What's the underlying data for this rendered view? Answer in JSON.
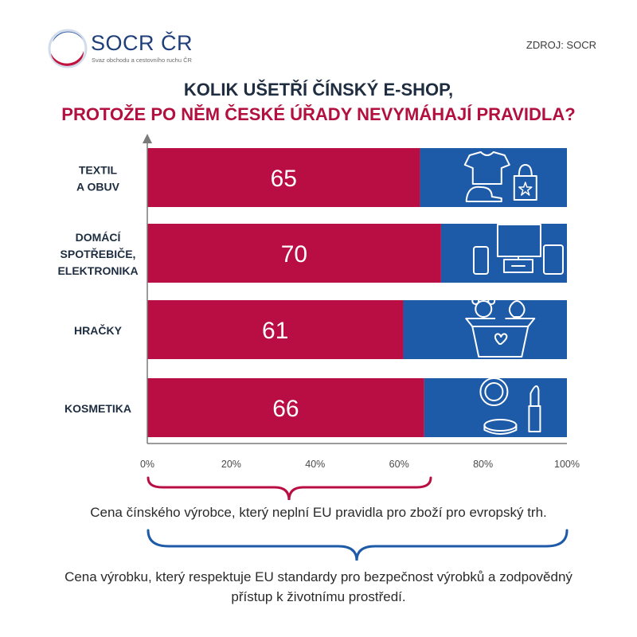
{
  "brand": {
    "name": "SOCR ČR",
    "tagline": "Svaz obchodu a cestovního ruchu ČR"
  },
  "source": "ZDROJ: SOCR",
  "title_line1": "KOLIK UŠETŘÍ ČÍNSKÝ E-SHOP,",
  "title_line2": "PROTOŽE PO NĚM ČESKÉ ÚŘADY NEVYMÁHAJÍ PRAVIDLA?",
  "chart_data": {
    "type": "bar",
    "orientation": "horizontal",
    "stacked_to_100": true,
    "categories": [
      [
        "TEXTIL",
        "A OBUV"
      ],
      [
        "DOMÁCÍ",
        "SPOTŘEBIČE,",
        "ELEKTRONIKA"
      ],
      [
        "HRAČKY"
      ],
      [
        "KOSMETIKA"
      ]
    ],
    "series": [
      {
        "values": [
          65,
          70,
          61,
          66
        ],
        "color": "#b90e43"
      },
      {
        "values": [
          35,
          30,
          39,
          34
        ],
        "color": "#1d5aa8"
      }
    ],
    "data_labels": [
      "65",
      "70",
      "61",
      "66"
    ],
    "icons": [
      "clothing-icon",
      "electronics-icon",
      "toys-box-icon",
      "cosmetics-icon"
    ],
    "xlim": [
      0,
      100
    ],
    "x_ticks": [
      "0%",
      "20%",
      "40%",
      "60%",
      "80%",
      "100%"
    ],
    "grid": false
  },
  "notes": {
    "chinese_price": "Cena čínského výrobce, který neplní EU pravidla pro zboží pro evropský trh.",
    "eu_price_line1": "Cena výrobku, který respektuje EU standardy pro bezpečnost výrobků a zodpovědný",
    "eu_price_line2": "přístup k životnímu prostředí."
  },
  "colors": {
    "red": "#b90e43",
    "blue": "#1d5aa8",
    "navy": "#1e2d40",
    "title_red": "#b30f3f"
  }
}
